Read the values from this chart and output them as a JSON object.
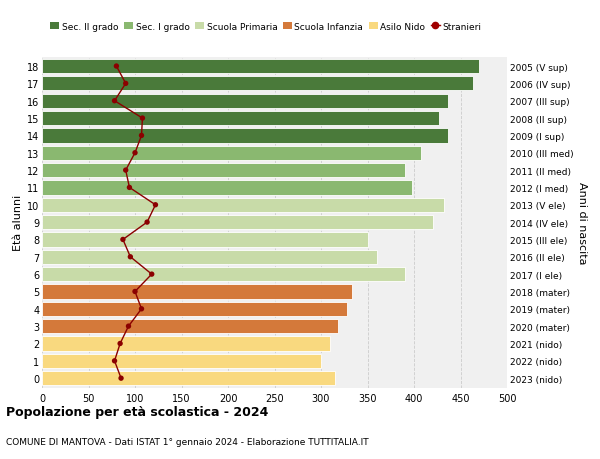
{
  "ages": [
    0,
    1,
    2,
    3,
    4,
    5,
    6,
    7,
    8,
    9,
    10,
    11,
    12,
    13,
    14,
    15,
    16,
    17,
    18
  ],
  "right_labels": [
    "2023 (nido)",
    "2022 (nido)",
    "2021 (nido)",
    "2020 (mater)",
    "2019 (mater)",
    "2018 (mater)",
    "2017 (I ele)",
    "2016 (II ele)",
    "2015 (III ele)",
    "2014 (IV ele)",
    "2013 (V ele)",
    "2012 (I med)",
    "2011 (II med)",
    "2010 (III med)",
    "2009 (I sup)",
    "2008 (II sup)",
    "2007 (III sup)",
    "2006 (IV sup)",
    "2005 (V sup)"
  ],
  "bar_values": [
    315,
    300,
    310,
    318,
    328,
    333,
    390,
    360,
    350,
    420,
    432,
    398,
    390,
    407,
    437,
    427,
    437,
    463,
    470
  ],
  "bar_colors": [
    "#f9d97f",
    "#f9d97f",
    "#f9d97f",
    "#d4793a",
    "#d4793a",
    "#d4793a",
    "#c8dba8",
    "#c8dba8",
    "#c8dba8",
    "#c8dba8",
    "#c8dba8",
    "#8ab870",
    "#8ab870",
    "#8ab870",
    "#4a7a3a",
    "#4a7a3a",
    "#4a7a3a",
    "#4a7a3a",
    "#4a7a3a"
  ],
  "stranieri_values": [
    85,
    78,
    84,
    93,
    107,
    100,
    118,
    95,
    87,
    113,
    122,
    94,
    90,
    100,
    107,
    108,
    78,
    90,
    80
  ],
  "xlim": [
    0,
    500
  ],
  "xticks": [
    0,
    50,
    100,
    150,
    200,
    250,
    300,
    350,
    400,
    450,
    500
  ],
  "legend_items": [
    {
      "label": "Sec. II grado",
      "color": "#4a7a3a"
    },
    {
      "label": "Sec. I grado",
      "color": "#8ab870"
    },
    {
      "label": "Scuola Primaria",
      "color": "#c8dba8"
    },
    {
      "label": "Scuola Infanzia",
      "color": "#d4793a"
    },
    {
      "label": "Asilo Nido",
      "color": "#f9d97f"
    },
    {
      "label": "Stranieri",
      "color": "#a00000",
      "marker": "o"
    }
  ],
  "title": "Popolazione per età scolastica - 2024",
  "subtitle": "COMUNE DI MANTOVA - Dati ISTAT 1° gennaio 2024 - Elaborazione TUTTITALIA.IT",
  "ylabel_left": "Età alunni",
  "ylabel_right": "Anni di nascita",
  "background_color": "#ffffff",
  "plot_bg_color": "#f0f0f0",
  "grid_color": "#cccccc"
}
